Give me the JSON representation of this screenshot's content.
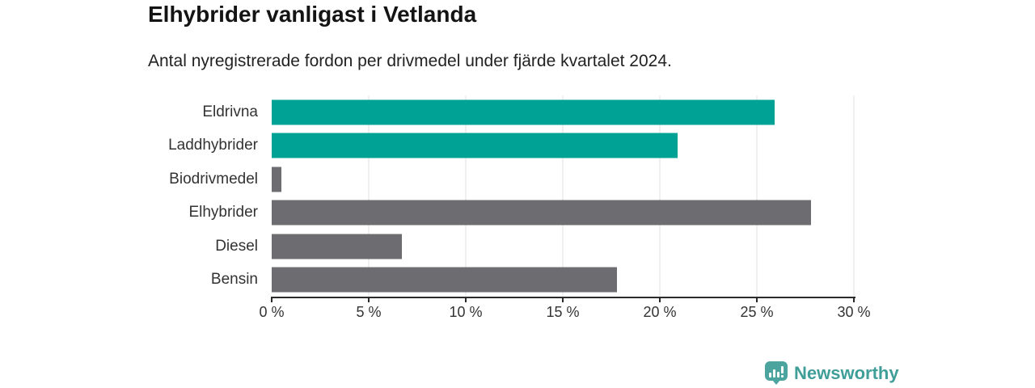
{
  "chart_data": {
    "type": "bar",
    "orientation": "horizontal",
    "title": "Elhybrider vanligast i Vetlanda",
    "subtitle": "Antal nyregistrerade fordon per drivmedel under fjärde kvartalet 2024.",
    "categories": [
      "Eldrivna",
      "Laddhybrider",
      "Biodrivmedel",
      "Elhybrider",
      "Diesel",
      "Bensin"
    ],
    "values": [
      25.9,
      20.9,
      0.5,
      27.8,
      6.7,
      17.8
    ],
    "unit": "%",
    "bar_colors": [
      "#00a296",
      "#00a296",
      "#6c6c71",
      "#6c6c71",
      "#6c6c71",
      "#6c6c71"
    ],
    "highlight_color": "#00a296",
    "default_color": "#6c6c71",
    "xlim": [
      0,
      30
    ],
    "x_ticks": [
      {
        "value": 0,
        "label": "0 %"
      },
      {
        "value": 5,
        "label": "5 %"
      },
      {
        "value": 10,
        "label": "10 %"
      },
      {
        "value": 15,
        "label": "15 %"
      },
      {
        "value": 20,
        "label": "20 %"
      },
      {
        "value": 25,
        "label": "25 %"
      },
      {
        "value": 30,
        "label": "30 %"
      }
    ],
    "grid": "vertical-gridlines-at-ticks",
    "legend": false
  },
  "branding": {
    "name": "Newsworthy",
    "icon": "newsworthy-chart-bubble-icon",
    "icon_color": "#4ba49d",
    "wordmark_color": "#3f9e98"
  },
  "style": {
    "background": "#ffffff",
    "title_color": "#141414",
    "text_color": "#333333",
    "axis_line_color": "#2b2b2b",
    "gridline_color": "#e0e0e0"
  }
}
